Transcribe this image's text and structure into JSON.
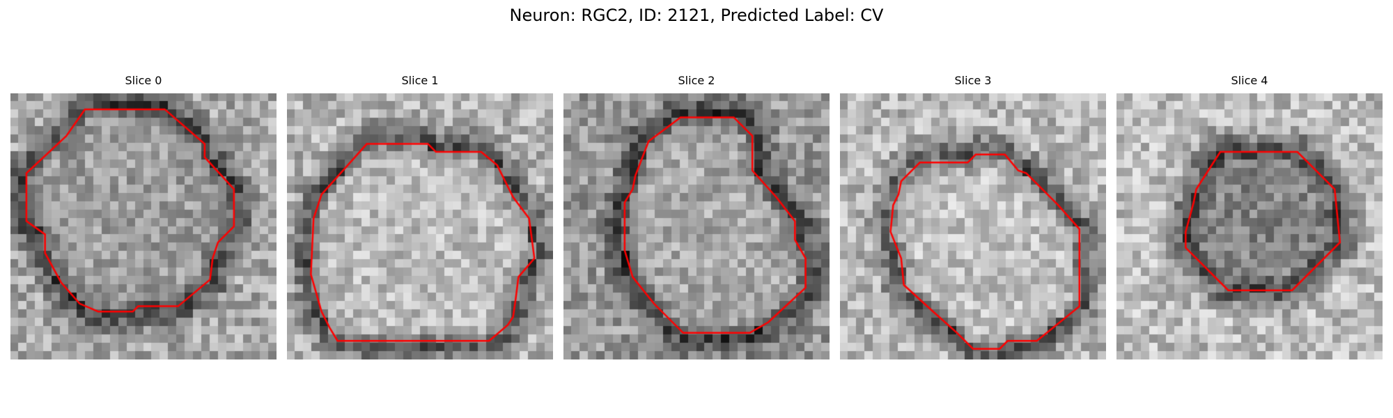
{
  "figure": {
    "title": "Neuron: RGC2, ID: 2121, Predicted Label: CV",
    "contour_color": "#ff0000",
    "colormap": "grayscale",
    "panels": [
      {
        "title": "Slice 0",
        "contour": [
          [
            0.28,
            0.06
          ],
          [
            0.58,
            0.06
          ],
          [
            0.73,
            0.19
          ],
          [
            0.73,
            0.24
          ],
          [
            0.84,
            0.36
          ],
          [
            0.84,
            0.5
          ],
          [
            0.78,
            0.56
          ],
          [
            0.76,
            0.62
          ],
          [
            0.75,
            0.7
          ],
          [
            0.63,
            0.8
          ],
          [
            0.48,
            0.8
          ],
          [
            0.46,
            0.82
          ],
          [
            0.33,
            0.82
          ],
          [
            0.26,
            0.79
          ],
          [
            0.19,
            0.71
          ],
          [
            0.13,
            0.6
          ],
          [
            0.13,
            0.53
          ],
          [
            0.06,
            0.48
          ],
          [
            0.06,
            0.3
          ],
          [
            0.21,
            0.16
          ]
        ]
      },
      {
        "title": "Slice 1",
        "contour": [
          [
            0.3,
            0.19
          ],
          [
            0.53,
            0.19
          ],
          [
            0.56,
            0.22
          ],
          [
            0.73,
            0.22
          ],
          [
            0.79,
            0.27
          ],
          [
            0.85,
            0.39
          ],
          [
            0.91,
            0.47
          ],
          [
            0.93,
            0.62
          ],
          [
            0.87,
            0.69
          ],
          [
            0.86,
            0.77
          ],
          [
            0.85,
            0.84
          ],
          [
            0.83,
            0.87
          ],
          [
            0.76,
            0.93
          ],
          [
            0.19,
            0.93
          ],
          [
            0.16,
            0.88
          ],
          [
            0.13,
            0.82
          ],
          [
            0.09,
            0.68
          ],
          [
            0.1,
            0.47
          ],
          [
            0.13,
            0.38
          ]
        ]
      },
      {
        "title": "Slice 2",
        "contour": [
          [
            0.44,
            0.09
          ],
          [
            0.64,
            0.09
          ],
          [
            0.71,
            0.16
          ],
          [
            0.71,
            0.29
          ],
          [
            0.8,
            0.39
          ],
          [
            0.87,
            0.48
          ],
          [
            0.87,
            0.55
          ],
          [
            0.91,
            0.62
          ],
          [
            0.91,
            0.73
          ],
          [
            0.77,
            0.86
          ],
          [
            0.7,
            0.9
          ],
          [
            0.45,
            0.9
          ],
          [
            0.34,
            0.79
          ],
          [
            0.26,
            0.69
          ],
          [
            0.23,
            0.59
          ],
          [
            0.23,
            0.41
          ],
          [
            0.26,
            0.36
          ],
          [
            0.27,
            0.31
          ],
          [
            0.32,
            0.18
          ]
        ]
      },
      {
        "title": "Slice 3",
        "contour": [
          [
            0.3,
            0.26
          ],
          [
            0.48,
            0.26
          ],
          [
            0.51,
            0.23
          ],
          [
            0.62,
            0.23
          ],
          [
            0.67,
            0.29
          ],
          [
            0.7,
            0.3
          ],
          [
            0.72,
            0.32
          ],
          [
            0.82,
            0.42
          ],
          [
            0.9,
            0.51
          ],
          [
            0.9,
            0.8
          ],
          [
            0.74,
            0.93
          ],
          [
            0.63,
            0.93
          ],
          [
            0.6,
            0.96
          ],
          [
            0.5,
            0.96
          ],
          [
            0.44,
            0.9
          ],
          [
            0.35,
            0.82
          ],
          [
            0.24,
            0.72
          ],
          [
            0.23,
            0.62
          ],
          [
            0.19,
            0.52
          ],
          [
            0.2,
            0.42
          ],
          [
            0.22,
            0.38
          ],
          [
            0.23,
            0.33
          ]
        ]
      },
      {
        "title": "Slice 4",
        "contour": [
          [
            0.39,
            0.22
          ],
          [
            0.68,
            0.22
          ],
          [
            0.73,
            0.27
          ],
          [
            0.82,
            0.36
          ],
          [
            0.84,
            0.56
          ],
          [
            0.66,
            0.74
          ],
          [
            0.42,
            0.74
          ],
          [
            0.31,
            0.63
          ],
          [
            0.26,
            0.58
          ],
          [
            0.26,
            0.52
          ],
          [
            0.29,
            0.41
          ],
          [
            0.3,
            0.36
          ]
        ]
      }
    ]
  }
}
